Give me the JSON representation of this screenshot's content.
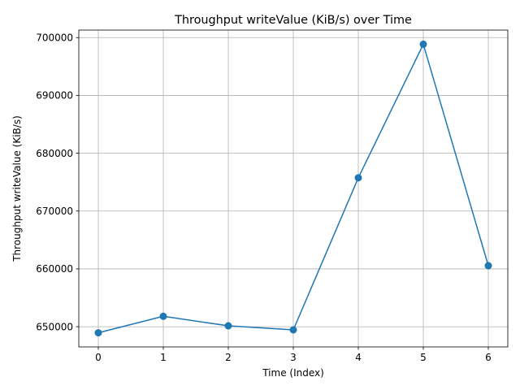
{
  "chart_data": {
    "type": "line",
    "title": "Throughput writeValue (KiB/s) over Time",
    "xlabel": "Time (Index)",
    "ylabel": "Throughput writeValue (KiB/s)",
    "x": [
      0,
      1,
      2,
      3,
      4,
      5,
      6
    ],
    "series": [
      {
        "values": [
          648950,
          651800,
          650150,
          649450,
          675750,
          698850,
          660550
        ],
        "color": "#1f77b4",
        "marker": "circle"
      }
    ],
    "xticks": [
      0,
      1,
      2,
      3,
      4,
      5,
      6
    ],
    "xtick_labels": [
      "0",
      "1",
      "2",
      "3",
      "4",
      "5",
      "6"
    ],
    "yticks": [
      650000,
      660000,
      670000,
      680000,
      690000,
      700000
    ],
    "ytick_labels": [
      "650000",
      "660000",
      "670000",
      "680000",
      "690000",
      "700000"
    ],
    "xlim": [
      -0.3,
      6.3
    ],
    "ylim": [
      646500,
      701300
    ],
    "grid": true
  }
}
